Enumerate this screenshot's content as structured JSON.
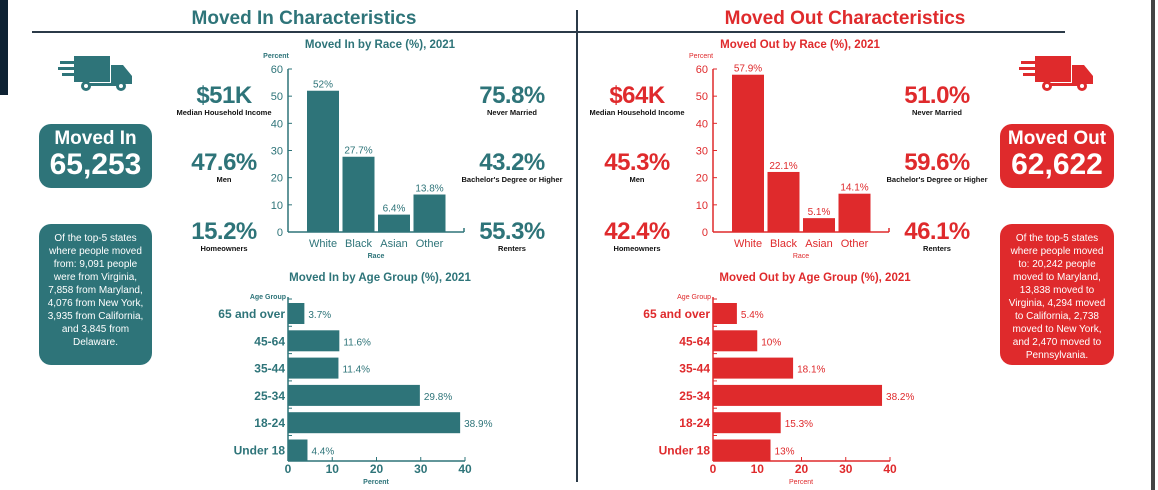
{
  "colors": {
    "in": "#2e7479",
    "out": "#df2a2c",
    "rule": "#2b3a48"
  },
  "moved_in": {
    "header": "Moved In Characteristics",
    "icon": "truck-icon",
    "total_label": "Moved In",
    "total": "65,253",
    "stats_left": [
      {
        "value": "$51K",
        "label": "Median Household Income"
      },
      {
        "value": "47.6%",
        "label": "Men"
      },
      {
        "value": "15.2%",
        "label": "Homeowners"
      }
    ],
    "stats_right": [
      {
        "value": "75.8%",
        "label": "Never Married"
      },
      {
        "value": "43.2%",
        "label": "Bachelor's Degree or Higher"
      },
      {
        "value": "55.3%",
        "label": "Renters"
      }
    ],
    "note": "Of the top-5 states where people moved from: 9,091 people were from Virginia, 7,858 from Maryland, 4,076 from New York, 3,935 from California, and 3,845 from Delaware."
  },
  "moved_out": {
    "header": "Moved Out Characteristics",
    "icon": "truck-icon",
    "total_label": "Moved Out",
    "total": "62,622",
    "stats_left": [
      {
        "value": "$64K",
        "label": "Median Household Income"
      },
      {
        "value": "45.3%",
        "label": "Men"
      },
      {
        "value": "42.4%",
        "label": "Homeowners"
      }
    ],
    "stats_right": [
      {
        "value": "51.0%",
        "label": "Never Married"
      },
      {
        "value": "59.6%",
        "label": "Bachelor's Degree or Higher"
      },
      {
        "value": "46.1%",
        "label": "Renters"
      }
    ],
    "note": "Of the top-5 states where people moved to: 20,242 people moved to Maryland, 13,838 moved to Virginia, 4,294 moved to California, 2,738 moved to New York, and 2,470 moved to Pennsylvania."
  },
  "chart_data": [
    {
      "type": "bar",
      "title": "Moved In by Race (%), 2021",
      "xlabel": "Race",
      "ylabel": "Percent",
      "categories": [
        "White",
        "Black",
        "Asian",
        "Other"
      ],
      "values": [
        52,
        27.7,
        6.4,
        13.8
      ],
      "data_labels": [
        "52%",
        "27.7%",
        "6.4%",
        "13.8%"
      ],
      "ylim": [
        0,
        60
      ],
      "yticks": [
        0,
        10,
        20,
        30,
        40,
        50,
        60
      ],
      "grid": false
    },
    {
      "type": "bar",
      "orientation": "horizontal",
      "title": "Moved In by Age Group (%), 2021",
      "xlabel": "Percent",
      "ylabel": "Age Group",
      "categories": [
        "65 and over",
        "45-64",
        "35-44",
        "25-34",
        "18-24",
        "Under 18"
      ],
      "values": [
        3.7,
        11.6,
        11.4,
        29.8,
        38.9,
        4.4
      ],
      "data_labels": [
        "3.7%",
        "11.6%",
        "11.4%",
        "29.8%",
        "38.9%",
        "4.4%"
      ],
      "xlim": [
        0,
        40
      ],
      "xticks": [
        0,
        10,
        20,
        30,
        40
      ],
      "grid": false
    },
    {
      "type": "bar",
      "title": "Moved Out by Race (%), 2021",
      "xlabel": "Race",
      "ylabel": "Percent",
      "categories": [
        "White",
        "Black",
        "Asian",
        "Other"
      ],
      "values": [
        57.9,
        22.1,
        5.1,
        14.1
      ],
      "data_labels": [
        "57.9%",
        "22.1%",
        "5.1%",
        "14.1%"
      ],
      "ylim": [
        0,
        60
      ],
      "yticks": [
        0,
        10,
        20,
        30,
        40,
        50,
        60
      ],
      "grid": false
    },
    {
      "type": "bar",
      "orientation": "horizontal",
      "title": "Moved Out by Age Group (%), 2021",
      "xlabel": "Percent",
      "ylabel": "Age Group",
      "categories": [
        "65 and over",
        "45-64",
        "35-44",
        "25-34",
        "18-24",
        "Under 18"
      ],
      "values": [
        5.4,
        10,
        18.1,
        38.2,
        15.3,
        13
      ],
      "data_labels": [
        "5.4%",
        "10%",
        "18.1%",
        "38.2%",
        "15.3%",
        "13%"
      ],
      "xlim": [
        0,
        40
      ],
      "xticks": [
        0,
        10,
        20,
        30,
        40
      ],
      "grid": false
    }
  ]
}
